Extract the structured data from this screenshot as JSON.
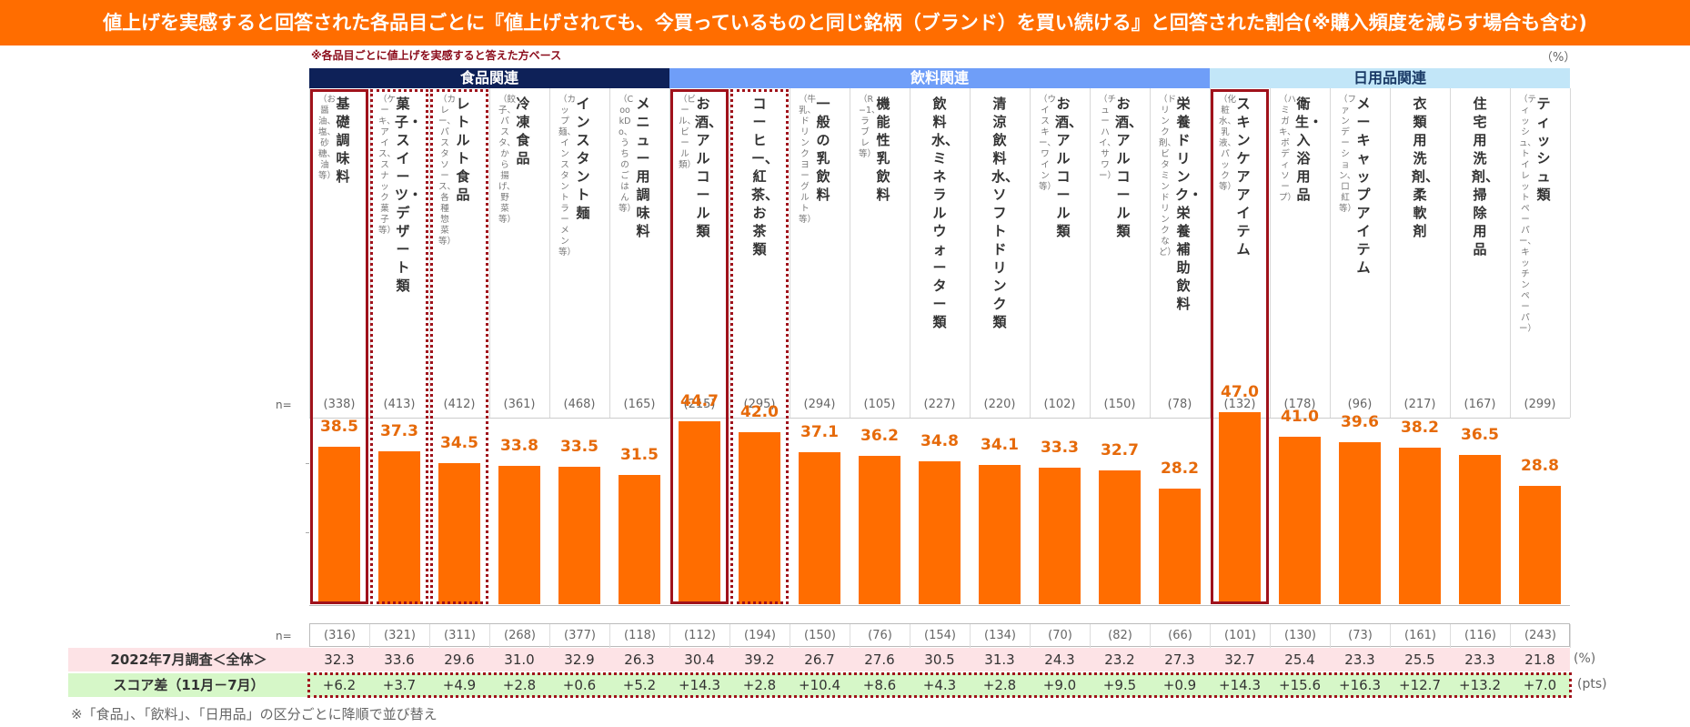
{
  "title": "値上げを実感すると回答された各品目ごとに『値上げされても、今買っているものと同じ銘柄（ブランド）を買い続ける』と回答された割合(※購入頻度を減らす場合も含む)",
  "note_top": "※各品目ごとに値上げを実感すると答えた方ベース",
  "unit_top": "（%）",
  "n_label": "n=",
  "groups": [
    {
      "label": "食品関連",
      "span": 6,
      "bg": "#0e2158",
      "fg": "#ffffff"
    },
    {
      "label": "飲料関連",
      "span": 9,
      "bg": "#6f9ef8",
      "fg": "#ffffff"
    },
    {
      "label": "日用品関連",
      "span": 6,
      "bg": "#c2e6f8",
      "fg": "#1a3a66"
    }
  ],
  "columns": [
    {
      "label": "基礎調味料",
      "sub": "（お醤油、塩、砂糖、油等）",
      "n_top": "(338)",
      "n_bottom": "(316)",
      "prev": "32.3",
      "diff": "+6.2",
      "highlight": "solid"
    },
    {
      "label": "菓子・スイーツ・デザート類",
      "sub": "（ケーキ、アイス、スナック菓子等）",
      "n_top": "(413)",
      "n_bottom": "(321)",
      "prev": "33.6",
      "diff": "+3.7",
      "highlight": "dotted"
    },
    {
      "label": "レトルト食品",
      "sub": "（カレー、パスタソース、各種惣菜等）",
      "n_top": "(412)",
      "n_bottom": "(311)",
      "prev": "29.6",
      "diff": "+4.9",
      "highlight": "dotted"
    },
    {
      "label": "冷凍食品",
      "sub": "（餃子、パスタ、から揚げ、野菜等）",
      "n_top": "(361)",
      "n_bottom": "(268)",
      "prev": "31.0",
      "diff": "+2.8",
      "highlight": ""
    },
    {
      "label": "インスタント麺",
      "sub": "（カップ麺、インスタントラーメン等）",
      "n_top": "(468)",
      "n_bottom": "(377)",
      "prev": "32.9",
      "diff": "+0.6",
      "highlight": ""
    },
    {
      "label": "メニュー用調味料",
      "sub": "（CookDo、うちのごはん等）",
      "n_top": "(165)",
      "n_bottom": "(118)",
      "prev": "26.3",
      "diff": "+5.2",
      "highlight": ""
    },
    {
      "label": "お酒、アルコール類",
      "sub": "（ビール、ビール類）",
      "n_top": "(215)",
      "n_bottom": "(112)",
      "prev": "30.4",
      "diff": "+14.3",
      "highlight": "solid"
    },
    {
      "label": "コーヒー、紅茶、お茶類",
      "sub": "",
      "n_top": "(295)",
      "n_bottom": "(194)",
      "prev": "39.2",
      "diff": "+2.8",
      "highlight": "dotted"
    },
    {
      "label": "一般の乳飲料",
      "sub": "（牛乳、ドリンクヨーグルト等）",
      "n_top": "(294)",
      "n_bottom": "(150)",
      "prev": "26.7",
      "diff": "+10.4",
      "highlight": ""
    },
    {
      "label": "機能性乳飲料",
      "sub": "（R−1、ラブレ等）",
      "n_top": "(105)",
      "n_bottom": "(76)",
      "prev": "27.6",
      "diff": "+8.6",
      "highlight": ""
    },
    {
      "label": "飲料水、ミネラルウォーター類",
      "sub": "",
      "n_top": "(227)",
      "n_bottom": "(154)",
      "prev": "30.5",
      "diff": "+4.3",
      "highlight": ""
    },
    {
      "label": "清涼飲料水、ソフトドリンク類",
      "sub": "",
      "n_top": "(220)",
      "n_bottom": "(134)",
      "prev": "31.3",
      "diff": "+2.8",
      "highlight": ""
    },
    {
      "label": "お酒、アルコール類",
      "sub": "（ウイスキー、ワイン等）",
      "n_top": "(102)",
      "n_bottom": "(70)",
      "prev": "24.3",
      "diff": "+9.0",
      "highlight": ""
    },
    {
      "label": "お酒、アルコール類",
      "sub": "（チューハイ、サワー）",
      "n_top": "(150)",
      "n_bottom": "(82)",
      "prev": "23.2",
      "diff": "+9.5",
      "highlight": ""
    },
    {
      "label": "栄養ドリンク・栄養補助飲料",
      "sub": "（ドリンク剤、ビタミンドリンクなど）",
      "n_top": "(78)",
      "n_bottom": "(66)",
      "prev": "27.3",
      "diff": "+0.9",
      "highlight": ""
    },
    {
      "label": "スキンケアアイテム",
      "sub": "（化粧水、乳液、パック等）",
      "n_top": "(132)",
      "n_bottom": "(101)",
      "prev": "32.7",
      "diff": "+14.3",
      "highlight": "solid"
    },
    {
      "label": "衛生・入浴用品",
      "sub": "（ハミガキ、ボディソープ）",
      "n_top": "(178)",
      "n_bottom": "(130)",
      "prev": "25.4",
      "diff": "+15.6",
      "highlight": ""
    },
    {
      "label": "メーキャップアイテム",
      "sub": "（ファンデーション、口紅等）",
      "n_top": "(96)",
      "n_bottom": "(73)",
      "prev": "23.3",
      "diff": "+16.3",
      "highlight": ""
    },
    {
      "label": "衣類用洗剤、柔軟剤",
      "sub": "",
      "n_top": "(217)",
      "n_bottom": "(161)",
      "prev": "25.5",
      "diff": "+12.7",
      "highlight": ""
    },
    {
      "label": "住宅用洗剤、掃除用品",
      "sub": "",
      "n_top": "(167)",
      "n_bottom": "(116)",
      "prev": "23.3",
      "diff": "+13.2",
      "highlight": ""
    },
    {
      "label": "ティッシュ類",
      "sub": "（ティッシュ、トイレットペーパー、キッチンペーパー）",
      "n_top": "(299)",
      "n_bottom": "(243)",
      "prev": "21.8",
      "diff": "+7.0",
      "highlight": ""
    }
  ],
  "rows": {
    "prev_label": "2022年7月調査＜全体＞",
    "diff_label": "スコア差（11月－7月）",
    "prev_unit": "(%)",
    "diff_unit": "(pts)"
  },
  "footnote": "※「食品」、「飲料」、「日用品」の区分ごとに降順で並び替え",
  "colors": {
    "title_bg": "#ff6d00",
    "bar": "#ff6d00",
    "value_label": "#e66a0a",
    "highlight": "#a0121b",
    "prev_row_bg": "#fde3e6",
    "diff_row_bg": "#d6f7c8",
    "food_col_bg": "#ffffff",
    "drink_col_bg": "#ffffff",
    "daily_col_bg": "#ffffff"
  },
  "chart_data": {
    "type": "bar",
    "categories": [
      "基礎調味料",
      "菓子・スイーツ・デザート類",
      "レトルト食品",
      "冷凍食品",
      "インスタント麺",
      "メニュー用調味料",
      "お酒、アルコール類（ビール、ビール類）",
      "コーヒー、紅茶、お茶類",
      "一般の乳飲料",
      "機能性乳飲料",
      "飲料水、ミネラルウォーター類",
      "清涼飲料水、ソフトドリンク類",
      "お酒、アルコール類（ウイスキー、ワイン等）",
      "お酒、アルコール類（チューハイ、サワー）",
      "栄養ドリンク・栄養補助飲料",
      "スキンケアアイテム",
      "衛生・入浴用品",
      "メーキャップアイテム",
      "衣類用洗剤、柔軟剤",
      "住宅用洗剤、掃除用品",
      "ティッシュ類"
    ],
    "values": [
      38.5,
      37.3,
      34.5,
      33.8,
      33.5,
      31.5,
      44.7,
      42.0,
      37.1,
      36.2,
      34.8,
      34.1,
      33.3,
      32.7,
      28.2,
      47.0,
      41.0,
      39.6,
      38.2,
      36.5,
      28.8
    ],
    "ylim": [
      0,
      60
    ],
    "grid": false,
    "legend": "none"
  }
}
